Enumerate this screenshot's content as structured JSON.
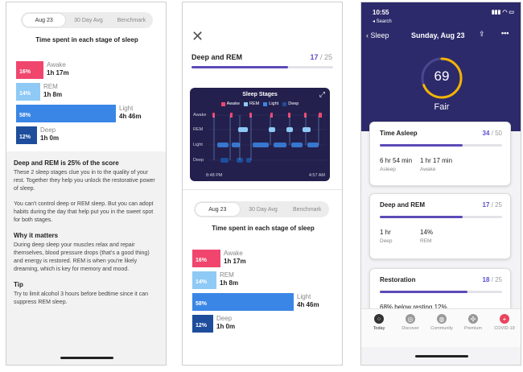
{
  "phone1": {
    "tabs": [
      "Aug 23",
      "30 Day Avg",
      "Benchmark"
    ],
    "section_title": "Time spent in each stage of sleep",
    "stages": [
      {
        "name": "Awake",
        "pct": "16%",
        "duration": "1h 17m",
        "color": "#f0466e",
        "fraction": 0.16
      },
      {
        "name": "REM",
        "pct": "14%",
        "duration": "1h 8m",
        "color": "#8fc9f5",
        "fraction": 0.14
      },
      {
        "name": "Light",
        "pct": "58%",
        "duration": "4h 46m",
        "color": "#3a86e6",
        "fraction": 0.58
      },
      {
        "name": "Deep",
        "pct": "12%",
        "duration": "1h 0m",
        "color": "#1e4d9c",
        "fraction": 0.12
      }
    ],
    "info": {
      "heading": "Deep and REM is 25% of the score",
      "p1": "These 2 sleep stages clue you in to the quality of your rest. Together they help you unlock the restorative power of sleep.",
      "p2": "You can't control deep or REM sleep. But you can adopt habits during the day that help put you in the sweet spot for both stages.",
      "why_heading": "Why it matters",
      "why_text": "During deep sleep your muscles relax and repair themselves, blood pressure drops (that's a good thing) and energy is restored. REM is when you're likely dreaming, which is key for memory and mood.",
      "tip_heading": "Tip",
      "tip_text": "Try to limit alcohol 3 hours before bedtime since it can suppress REM sleep."
    }
  },
  "phone2": {
    "close_icon": "close-icon",
    "heading": "Deep and REM",
    "score": "17",
    "score_max": "/ 25",
    "progress": 0.68,
    "chart": {
      "title": "Sleep Stages",
      "legend": [
        {
          "label": "Awake",
          "color": "#f0466e"
        },
        {
          "label": "REM",
          "color": "#8fc9f5"
        },
        {
          "label": "Light",
          "color": "#3a86e6"
        },
        {
          "label": "Deep",
          "color": "#1e4d9c"
        }
      ],
      "y_labels": [
        "Awake",
        "REM",
        "Light",
        "Deep"
      ],
      "start_time": "8:48 PM",
      "end_time": "4:57 AM"
    },
    "tabs": [
      "Aug 23",
      "30 Day Avg",
      "Benchmark"
    ],
    "section_title": "Time spent in each stage of sleep",
    "stages": [
      {
        "name": "Awake",
        "pct": "16%",
        "duration": "1h 17m",
        "color": "#f0466e",
        "fraction": 0.16
      },
      {
        "name": "REM",
        "pct": "14%",
        "duration": "1h 8m",
        "color": "#8fc9f5",
        "fraction": 0.14
      },
      {
        "name": "Light",
        "pct": "58%",
        "duration": "4h 46m",
        "color": "#3a86e6",
        "fraction": 0.58
      },
      {
        "name": "Deep",
        "pct": "12%",
        "duration": "1h 0m",
        "color": "#1e4d9c",
        "fraction": 0.12
      }
    ]
  },
  "phone3": {
    "time": "10:55",
    "back_app": "◂ Search",
    "nav_back": "Sleep",
    "date": "Sunday, Aug 23",
    "score": "69",
    "score_label": "Fair",
    "score_fraction": 0.69,
    "cards": [
      {
        "title": "Time Asleep",
        "score": "34",
        "max": "/ 50",
        "fraction": 0.68,
        "stats": [
          {
            "value": "6 hr 54 min",
            "label": "Asleep"
          },
          {
            "value": "1 hr 17 min",
            "label": "Awake"
          }
        ]
      },
      {
        "title": "Deep and REM",
        "score": "17",
        "max": "/ 25",
        "fraction": 0.68,
        "stats": [
          {
            "value": "1 hr",
            "label": "Deep"
          },
          {
            "value": "14%",
            "label": "REM"
          }
        ]
      },
      {
        "title": "Restoration",
        "score": "18",
        "max": "/ 25",
        "fraction": 0.72,
        "stats": [
          {
            "value": "68% below resting  12%",
            "label": ""
          }
        ]
      }
    ],
    "tabs": [
      {
        "label": "Today",
        "icon": "today-icon",
        "color": "#333"
      },
      {
        "label": "Discover",
        "icon": "discover-icon",
        "color": "#999"
      },
      {
        "label": "Community",
        "icon": "community-icon",
        "color": "#999"
      },
      {
        "label": "Premium",
        "icon": "premium-icon",
        "color": "#999"
      },
      {
        "label": "COVID-19",
        "icon": "covid-icon",
        "color": "#e8455e"
      }
    ]
  }
}
